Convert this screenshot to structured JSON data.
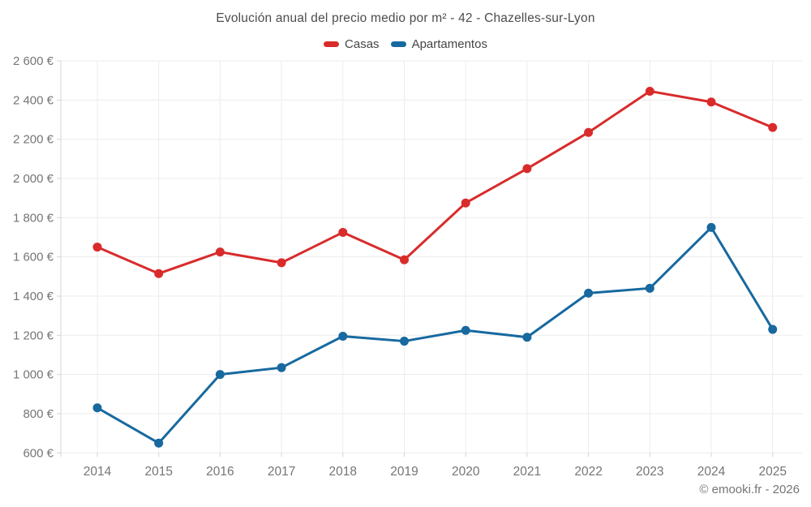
{
  "title": "Evolución anual del precio medio por m² - 42 - Chazelles-sur-Lyon",
  "footer": "© emooki.fr - 2026",
  "chart_data": {
    "type": "line",
    "title": "Evolución anual del precio medio por m² - 42 - Chazelles-sur-Lyon",
    "categories": [
      "2014",
      "2015",
      "2016",
      "2017",
      "2018",
      "2019",
      "2020",
      "2021",
      "2022",
      "2023",
      "2024",
      "2025"
    ],
    "series": [
      {
        "name": "Casas",
        "color": "#d92b2b",
        "values": [
          1650,
          1515,
          1625,
          1570,
          1725,
          1585,
          1875,
          2050,
          2235,
          2445,
          2390,
          2260
        ]
      },
      {
        "name": "Apartamentos",
        "color": "#17699f",
        "values": [
          830,
          650,
          1000,
          1035,
          1195,
          1170,
          1225,
          1190,
          1415,
          1440,
          1750,
          1230
        ]
      }
    ],
    "ylim": [
      600,
      2600
    ],
    "ytick_step": 200,
    "ytick_suffix": " €",
    "xlabel": "",
    "ylabel": "",
    "grid": true,
    "legend_position": "top",
    "marker": "circle"
  },
  "axis_colors": {
    "grid": "#ececec",
    "axis_line": "#d4d4d4",
    "tick_label": "#757575"
  }
}
